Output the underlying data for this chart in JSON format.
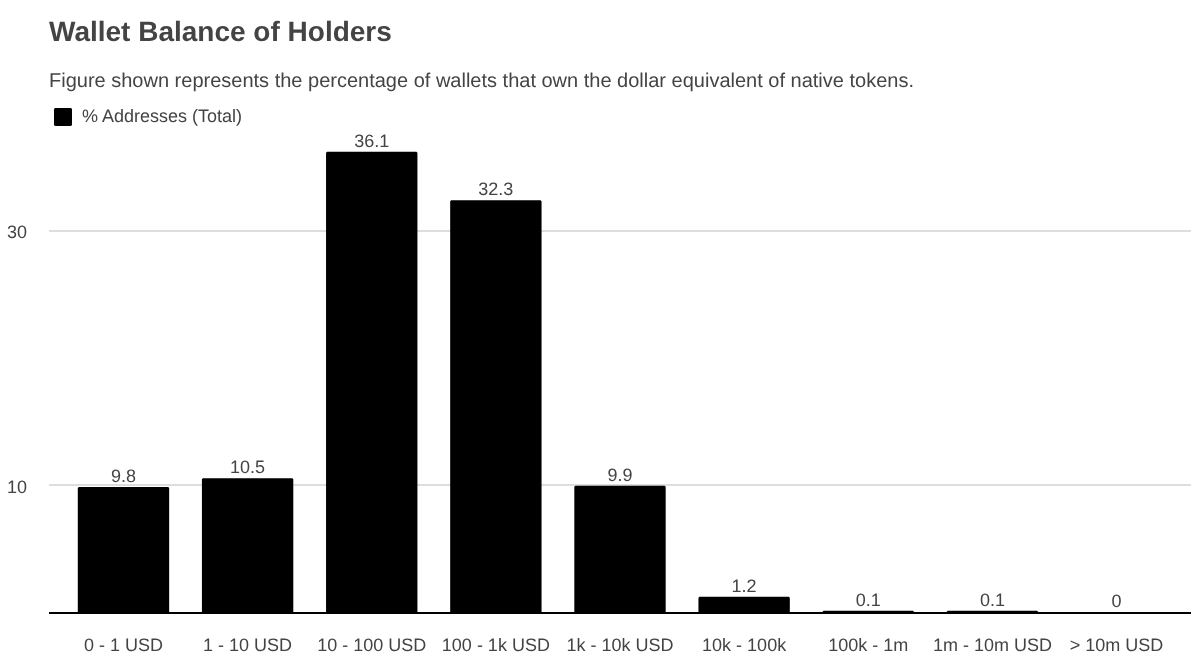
{
  "chart_data": {
    "type": "bar",
    "title": "Wallet Balance of Holders",
    "subtitle": "Figure shown represents the percentage of wallets that own the dollar equivalent of native tokens.",
    "categories": [
      "0 - 1 USD",
      "1 - 10 USD",
      "10 - 100 USD",
      "100 - 1k USD",
      "1k - 10k USD",
      "10k - 100k",
      "100k - 1m",
      "1m - 10m USD",
      "> 10m USD"
    ],
    "series": [
      {
        "name": "% Addresses (Total)",
        "color": "#000000",
        "values": [
          9.8,
          10.5,
          36.1,
          32.3,
          9.9,
          1.2,
          0.1,
          0.1,
          0
        ]
      }
    ],
    "ylim": [
      0,
      40
    ],
    "yticks": [
      10,
      30
    ],
    "grid": "y",
    "legend": "top left",
    "data_labels": true
  }
}
